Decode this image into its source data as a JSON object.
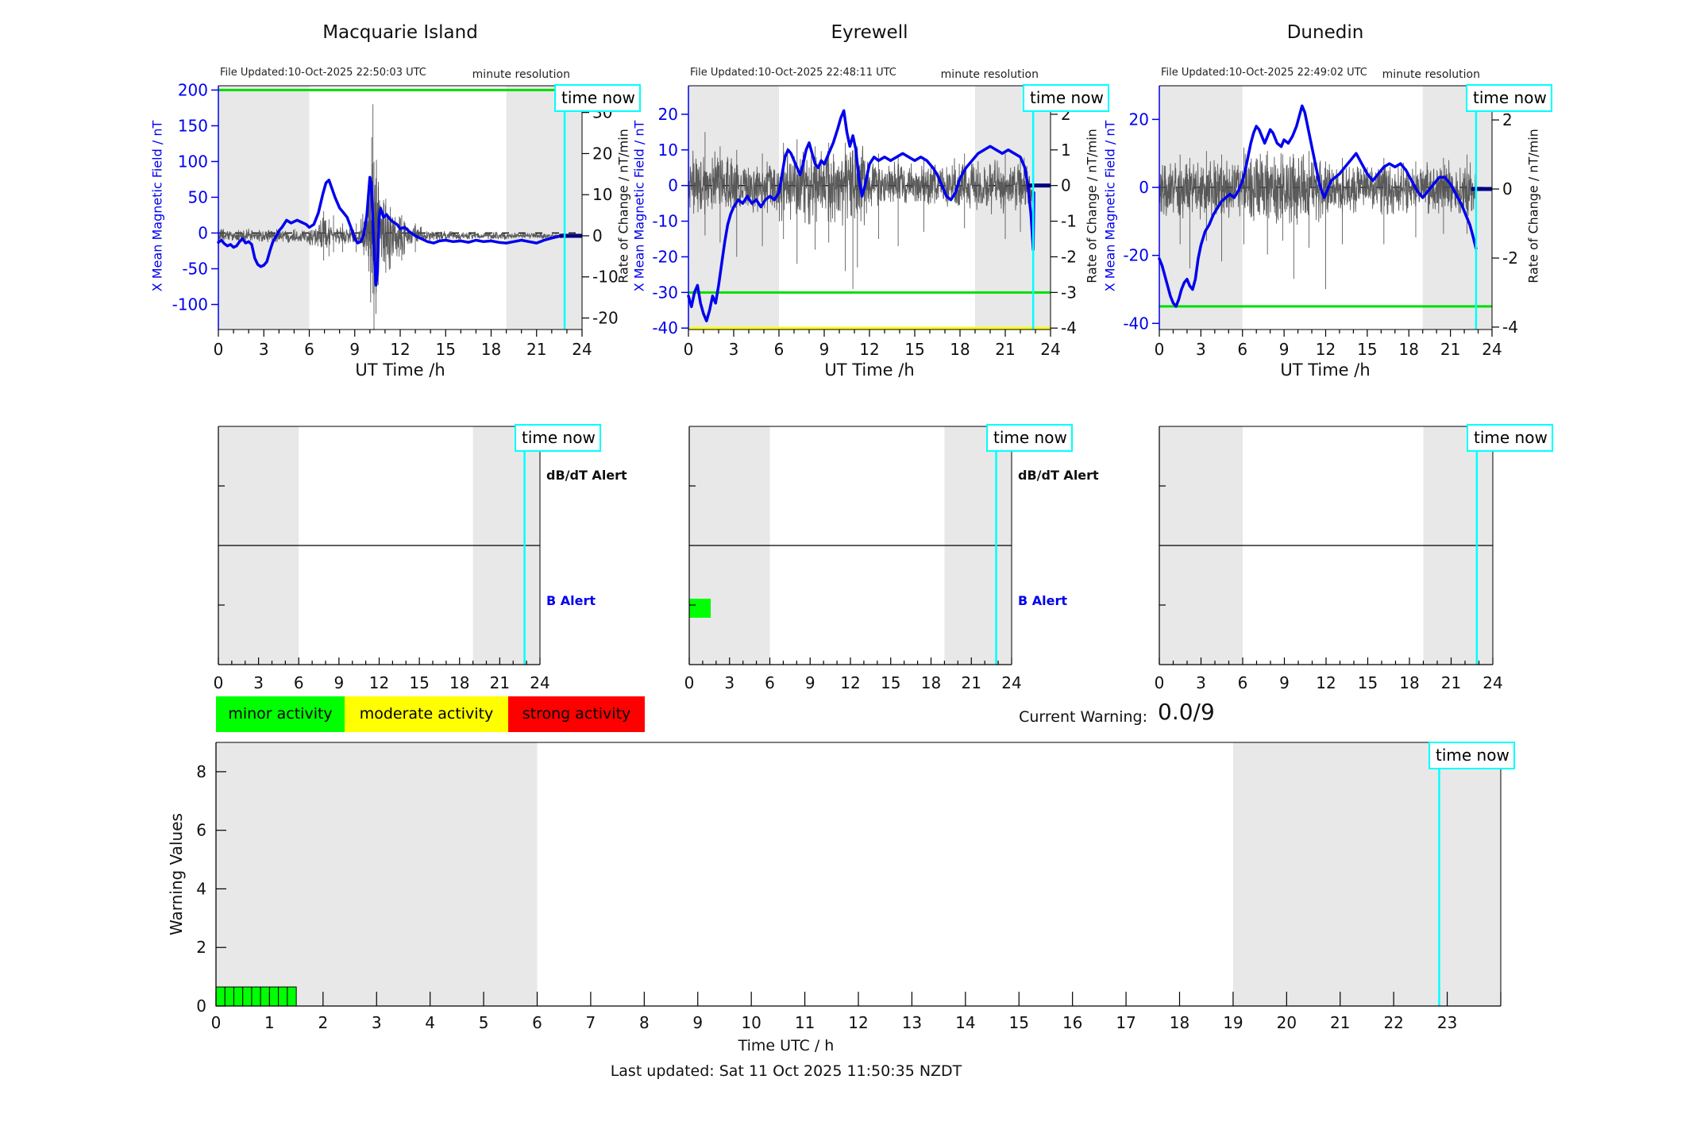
{
  "labels": {
    "time_now": "time now",
    "minute_resolution": "minute resolution",
    "ut_time_axis": "UT Time /h",
    "left_axis": "X Mean Magnetic Field / nT",
    "right_axis": "Rate of Change / nT/min",
    "dbdt_alert": "dB/dT Alert",
    "b_alert": "B Alert",
    "current_warning": "Current Warning:",
    "current_warning_value": "0.0/9",
    "warning_values_axis": "Warning Values",
    "time_utc_axis": "Time UTC / h",
    "last_updated": "Last updated: Sat 11 Oct 2025 11:50:35 NZDT"
  },
  "legend": {
    "items": [
      {
        "label": "minor activity",
        "color": "#00ff00"
      },
      {
        "label": "moderate activity",
        "color": "#ffff00"
      },
      {
        "label": "strong activity",
        "color": "#ff0000"
      }
    ]
  },
  "colors": {
    "blue": "#0000ee",
    "noise": "#4a4a4a",
    "green": "#00dd00",
    "yellow": "#ffff00",
    "cyan": "#00ffff",
    "navy": "#000080",
    "band": "#e8e8e8",
    "bar_green": "#00ff00",
    "axis": "#000000"
  },
  "chart_data": {
    "type": "line",
    "stations": [
      {
        "title": "Macquarie Island",
        "file_updated": "File Updated:10-Oct-2025 22:50:03 UTC",
        "xlim": [
          0,
          24
        ],
        "x_ticks": [
          0,
          3,
          6,
          9,
          12,
          15,
          18,
          21,
          24
        ],
        "left_ticks": [
          200,
          150,
          100,
          50,
          0,
          -50,
          -100
        ],
        "left_ylim": [
          -135,
          206
        ],
        "right_ticks": [
          30,
          20,
          10,
          0,
          -10,
          -20
        ],
        "right_ylim": [
          -22.8,
          36.5
        ],
        "green_threshold": 200,
        "yellow_threshold": null,
        "night_bands": [
          [
            0,
            6
          ],
          [
            19,
            24
          ]
        ],
        "time_now_x": 22.85,
        "mean_series": {
          "x": [
            0,
            0.2,
            0.4,
            0.6,
            0.8,
            1.0,
            1.2,
            1.4,
            1.6,
            1.8,
            2.0,
            2.2,
            2.4,
            2.6,
            2.8,
            3.0,
            3.2,
            3.4,
            3.6,
            3.8,
            4.0,
            4.2,
            4.5,
            4.8,
            5.0,
            5.2,
            5.5,
            5.8,
            6.0,
            6.3,
            6.6,
            6.9,
            7.1,
            7.3,
            7.5,
            7.7,
            8.0,
            8.2,
            8.5,
            8.8,
            9.0,
            9.2,
            9.4,
            9.6,
            9.8,
            10.0,
            10.1,
            10.2,
            10.3,
            10.4,
            10.5,
            10.6,
            10.7,
            10.9,
            11.1,
            11.3,
            11.5,
            11.8,
            12.0,
            12.3,
            12.6,
            13.0,
            13.4,
            13.8,
            14.2,
            14.6,
            15.0,
            15.5,
            16.0,
            16.5,
            17.0,
            17.5,
            18.0,
            18.5,
            19.0,
            19.5,
            20.0,
            20.5,
            21.0,
            21.5,
            22.0,
            22.4,
            22.85
          ],
          "y": [
            -13,
            -10,
            -15,
            -18,
            -16,
            -20,
            -18,
            -12,
            -8,
            -14,
            -12,
            -16,
            -35,
            -44,
            -47,
            -45,
            -40,
            -25,
            -12,
            -5,
            3,
            8,
            18,
            14,
            16,
            18,
            15,
            12,
            8,
            12,
            28,
            55,
            70,
            74,
            62,
            50,
            35,
            30,
            22,
            5,
            -8,
            -14,
            -12,
            -2,
            25,
            78,
            70,
            15,
            -35,
            -73,
            -55,
            20,
            35,
            22,
            26,
            20,
            16,
            12,
            6,
            8,
            2,
            -4,
            -8,
            -12,
            -14,
            -11,
            -10,
            -12,
            -11,
            -13,
            -10,
            -12,
            -11,
            -13,
            -14,
            -12,
            -10,
            -12,
            -14,
            -10,
            -7,
            -5,
            -2
          ]
        },
        "noise_segments": [
          [
            0,
            6,
            1.6
          ],
          [
            6,
            6.6,
            2.5
          ],
          [
            6.6,
            7.2,
            4.5
          ],
          [
            7.2,
            9.4,
            2.2
          ],
          [
            9.4,
            9.9,
            5
          ],
          [
            9.9,
            10.6,
            18
          ],
          [
            10.6,
            11.4,
            9
          ],
          [
            11.4,
            12.4,
            5
          ],
          [
            12.4,
            13.4,
            2.5
          ],
          [
            13.4,
            16,
            1.2
          ],
          [
            16,
            19,
            1.0
          ],
          [
            19,
            22.87,
            0.7
          ]
        ],
        "noise_spikes": [
          [
            10.2,
            -14,
            32
          ],
          [
            10.27,
            -23,
            18
          ],
          [
            10.12,
            -9,
            24
          ],
          [
            10.4,
            -19,
            14
          ],
          [
            10.55,
            -12,
            12
          ],
          [
            6.95,
            -6,
            6
          ],
          [
            11.05,
            -9,
            9
          ],
          [
            11.35,
            -8,
            7
          ],
          [
            12.1,
            -6,
            5
          ],
          [
            8.2,
            -4,
            3
          ],
          [
            9.1,
            -4,
            3
          ],
          [
            13.0,
            -4,
            3
          ],
          [
            7.3,
            -5,
            4
          ],
          [
            7.6,
            -4,
            5
          ]
        ],
        "alert_panel": {
          "has_labels": true,
          "b_alert_bars": [],
          "dbdt_alert_bars": []
        }
      },
      {
        "title": "Eyrewell",
        "file_updated": "File Updated:10-Oct-2025 22:48:11 UTC",
        "xlim": [
          0,
          24
        ],
        "x_ticks": [
          0,
          3,
          6,
          9,
          12,
          15,
          18,
          21,
          24
        ],
        "left_ticks": [
          20,
          10,
          0,
          -10,
          -20,
          -30,
          -40
        ],
        "left_ylim": [
          -40.4,
          28
        ],
        "right_ticks": [
          2,
          1,
          0,
          -1,
          -2,
          -3,
          -4
        ],
        "right_ylim": [
          -4.04,
          2.8
        ],
        "green_threshold": -30,
        "yellow_threshold": -40,
        "night_bands": [
          [
            0,
            6
          ],
          [
            19,
            24
          ]
        ],
        "time_now_x": 22.85,
        "mean_series": {
          "x": [
            0,
            0.2,
            0.4,
            0.6,
            0.8,
            1.0,
            1.2,
            1.4,
            1.6,
            1.8,
            2.0,
            2.2,
            2.4,
            2.6,
            2.8,
            3.0,
            3.3,
            3.6,
            3.9,
            4.2,
            4.5,
            4.8,
            5.1,
            5.4,
            5.7,
            6.0,
            6.2,
            6.4,
            6.6,
            6.8,
            7.0,
            7.2,
            7.4,
            7.6,
            7.8,
            8.0,
            8.2,
            8.4,
            8.6,
            8.8,
            9.0,
            9.3,
            9.6,
            9.9,
            10.1,
            10.3,
            10.5,
            10.7,
            10.9,
            11.1,
            11.3,
            11.5,
            11.7,
            12.0,
            12.3,
            12.6,
            13.0,
            13.4,
            13.8,
            14.2,
            14.6,
            15.0,
            15.4,
            15.8,
            16.2,
            16.5,
            16.8,
            17.1,
            17.4,
            17.7,
            18.0,
            18.4,
            18.8,
            19.2,
            19.6,
            20.0,
            20.4,
            20.8,
            21.2,
            21.6,
            22.0,
            22.3,
            22.5,
            22.7,
            22.85,
            22.9
          ],
          "y": [
            -31,
            -34,
            -30,
            -28,
            -33,
            -36,
            -38,
            -35,
            -31,
            -33,
            -28,
            -22,
            -16,
            -11,
            -8,
            -6,
            -4,
            -5,
            -3,
            -5,
            -4,
            -6,
            -4,
            -3,
            -4,
            -2,
            3,
            8,
            10,
            9,
            7,
            5,
            3,
            6,
            10,
            12,
            9,
            6,
            5,
            7,
            6,
            9,
            12,
            16,
            19,
            21,
            15,
            11,
            14,
            10,
            2,
            -3,
            0,
            6,
            8,
            7,
            8,
            7,
            8,
            9,
            8,
            7,
            8,
            7,
            5,
            3,
            0,
            -3,
            -4,
            -2,
            2,
            5,
            7,
            9,
            10,
            11,
            10,
            9,
            10,
            9,
            8,
            5,
            0,
            -8,
            -18,
            -2
          ]
        },
        "noise_segments": [
          [
            0,
            3,
            0.9
          ],
          [
            3,
            6,
            0.7
          ],
          [
            6,
            7.5,
            1.0
          ],
          [
            7.5,
            12,
            1.1
          ],
          [
            12,
            16,
            0.6
          ],
          [
            16,
            19,
            0.7
          ],
          [
            19,
            22.87,
            0.75
          ]
        ],
        "noise_spikes": [
          [
            1.1,
            -1.4,
            1.5
          ],
          [
            2.1,
            -1.6,
            1.1
          ],
          [
            3.2,
            -2.0,
            1.0
          ],
          [
            4.9,
            -1.7,
            0.9
          ],
          [
            6.3,
            -1.5,
            1.2
          ],
          [
            7.2,
            -2.2,
            1.3
          ],
          [
            8.4,
            -1.8,
            1.1
          ],
          [
            9.3,
            -1.6,
            1.2
          ],
          [
            10.4,
            -2.4,
            1.2
          ],
          [
            10.9,
            -2.9,
            1.0
          ],
          [
            11.2,
            -2.3,
            1.1
          ],
          [
            12.6,
            -1.5,
            0.9
          ],
          [
            13.9,
            -1.7,
            0.8
          ],
          [
            15.6,
            -1.3,
            0.8
          ],
          [
            18.3,
            -1.2,
            0.9
          ],
          [
            21.0,
            -1.5,
            0.9
          ],
          [
            22.0,
            -1.3,
            0.8
          ]
        ],
        "alert_panel": {
          "has_labels": true,
          "b_alert_bars": [
            [
              0,
              1.6
            ]
          ],
          "dbdt_alert_bars": []
        }
      },
      {
        "title": "Dunedin",
        "file_updated": "File Updated:10-Oct-2025 22:49:02 UTC",
        "xlim": [
          0,
          24
        ],
        "x_ticks": [
          0,
          3,
          6,
          9,
          12,
          15,
          18,
          21,
          24
        ],
        "left_ticks": [
          20,
          0,
          -20,
          -40
        ],
        "left_ylim": [
          -41.8,
          29.9
        ],
        "right_ticks": [
          2,
          0,
          -2,
          -4
        ],
        "right_ylim": [
          -4.07,
          2.99
        ],
        "green_threshold": -35,
        "yellow_threshold": null,
        "night_bands": [
          [
            0,
            6
          ],
          [
            19,
            24
          ]
        ],
        "time_now_x": 22.85,
        "mean_series": {
          "x": [
            0,
            0.2,
            0.4,
            0.6,
            0.8,
            1.0,
            1.2,
            1.4,
            1.6,
            1.8,
            2.0,
            2.2,
            2.4,
            2.6,
            2.8,
            3.0,
            3.3,
            3.6,
            3.9,
            4.2,
            4.5,
            4.8,
            5.1,
            5.4,
            5.7,
            6.0,
            6.2,
            6.4,
            6.6,
            6.8,
            7.0,
            7.2,
            7.4,
            7.6,
            7.8,
            8.0,
            8.2,
            8.5,
            8.8,
            9.0,
            9.3,
            9.6,
            9.9,
            10.1,
            10.3,
            10.5,
            10.7,
            10.9,
            11.1,
            11.3,
            11.5,
            11.7,
            11.9,
            12.1,
            12.4,
            12.7,
            13.0,
            13.4,
            13.8,
            14.2,
            14.6,
            15.0,
            15.4,
            15.8,
            16.2,
            16.6,
            17.0,
            17.4,
            17.8,
            18.2,
            18.6,
            19.0,
            19.4,
            19.8,
            20.2,
            20.6,
            21.0,
            21.4,
            21.8,
            22.1,
            22.4,
            22.6,
            22.85
          ],
          "y": [
            -21,
            -23,
            -26,
            -29,
            -32,
            -34,
            -35,
            -33,
            -30,
            -28,
            -27,
            -29,
            -30,
            -27,
            -21,
            -17,
            -13,
            -11,
            -8,
            -6,
            -4,
            -3,
            -2,
            -3,
            -1,
            2,
            5,
            9,
            13,
            16,
            18,
            17,
            15,
            13,
            15,
            17,
            16,
            13,
            12,
            14,
            13,
            15,
            18,
            21,
            24,
            22,
            18,
            14,
            10,
            6,
            2,
            -1,
            -3,
            -1,
            2,
            3,
            4,
            6,
            8,
            10,
            7,
            4,
            2,
            4,
            6,
            7,
            6,
            7,
            5,
            2,
            -1,
            -3,
            -1,
            1,
            3,
            3,
            1,
            -2,
            -5,
            -8,
            -11,
            -14,
            -18
          ]
        },
        "noise_segments": [
          [
            0,
            6,
            0.8
          ],
          [
            6,
            12,
            1.0
          ],
          [
            12,
            19,
            0.7
          ],
          [
            19,
            22.87,
            0.75
          ]
        ],
        "noise_spikes": [
          [
            1.5,
            -1.6,
            1.0
          ],
          [
            2.2,
            -2.3,
            0.9
          ],
          [
            3.4,
            -1.5,
            1.1
          ],
          [
            4.5,
            -2.1,
            1.0
          ],
          [
            6.1,
            -1.6,
            1.2
          ],
          [
            7.8,
            -1.9,
            1.1
          ],
          [
            8.9,
            -1.5,
            1.0
          ],
          [
            9.7,
            -2.6,
            0.9
          ],
          [
            10.8,
            -1.7,
            1.1
          ],
          [
            12.0,
            -2.9,
            0.8
          ],
          [
            13.2,
            -1.6,
            0.9
          ],
          [
            16.2,
            -1.6,
            0.9
          ],
          [
            18.5,
            -1.4,
            0.8
          ],
          [
            20.5,
            -1.3,
            0.9
          ],
          [
            22.2,
            -1.3,
            1.0
          ]
        ],
        "alert_panel": {
          "has_labels": false,
          "b_alert_bars": [],
          "dbdt_alert_bars": []
        }
      }
    ],
    "warning_chart": {
      "type": "bar",
      "ylim": [
        0,
        9
      ],
      "y_ticks": [
        0,
        2,
        4,
        6,
        8
      ],
      "x_tick_labels": [
        0,
        1,
        2,
        3,
        4,
        5,
        6,
        7,
        8,
        9,
        10,
        11,
        12,
        13,
        14,
        15,
        16,
        17,
        18,
        19,
        20,
        21,
        22,
        23
      ],
      "night_bands": [
        [
          0,
          6
        ],
        [
          19,
          24
        ]
      ],
      "time_now_x": 22.85,
      "bars": {
        "start_x": [
          0,
          0.1667,
          0.3333,
          0.5,
          0.6667,
          0.8333,
          1.0,
          1.1667,
          1.3333
        ],
        "width": 0.1667,
        "values": [
          0.65,
          0.65,
          0.65,
          0.65,
          0.65,
          0.65,
          0.65,
          0.65,
          0.65
        ]
      }
    }
  }
}
